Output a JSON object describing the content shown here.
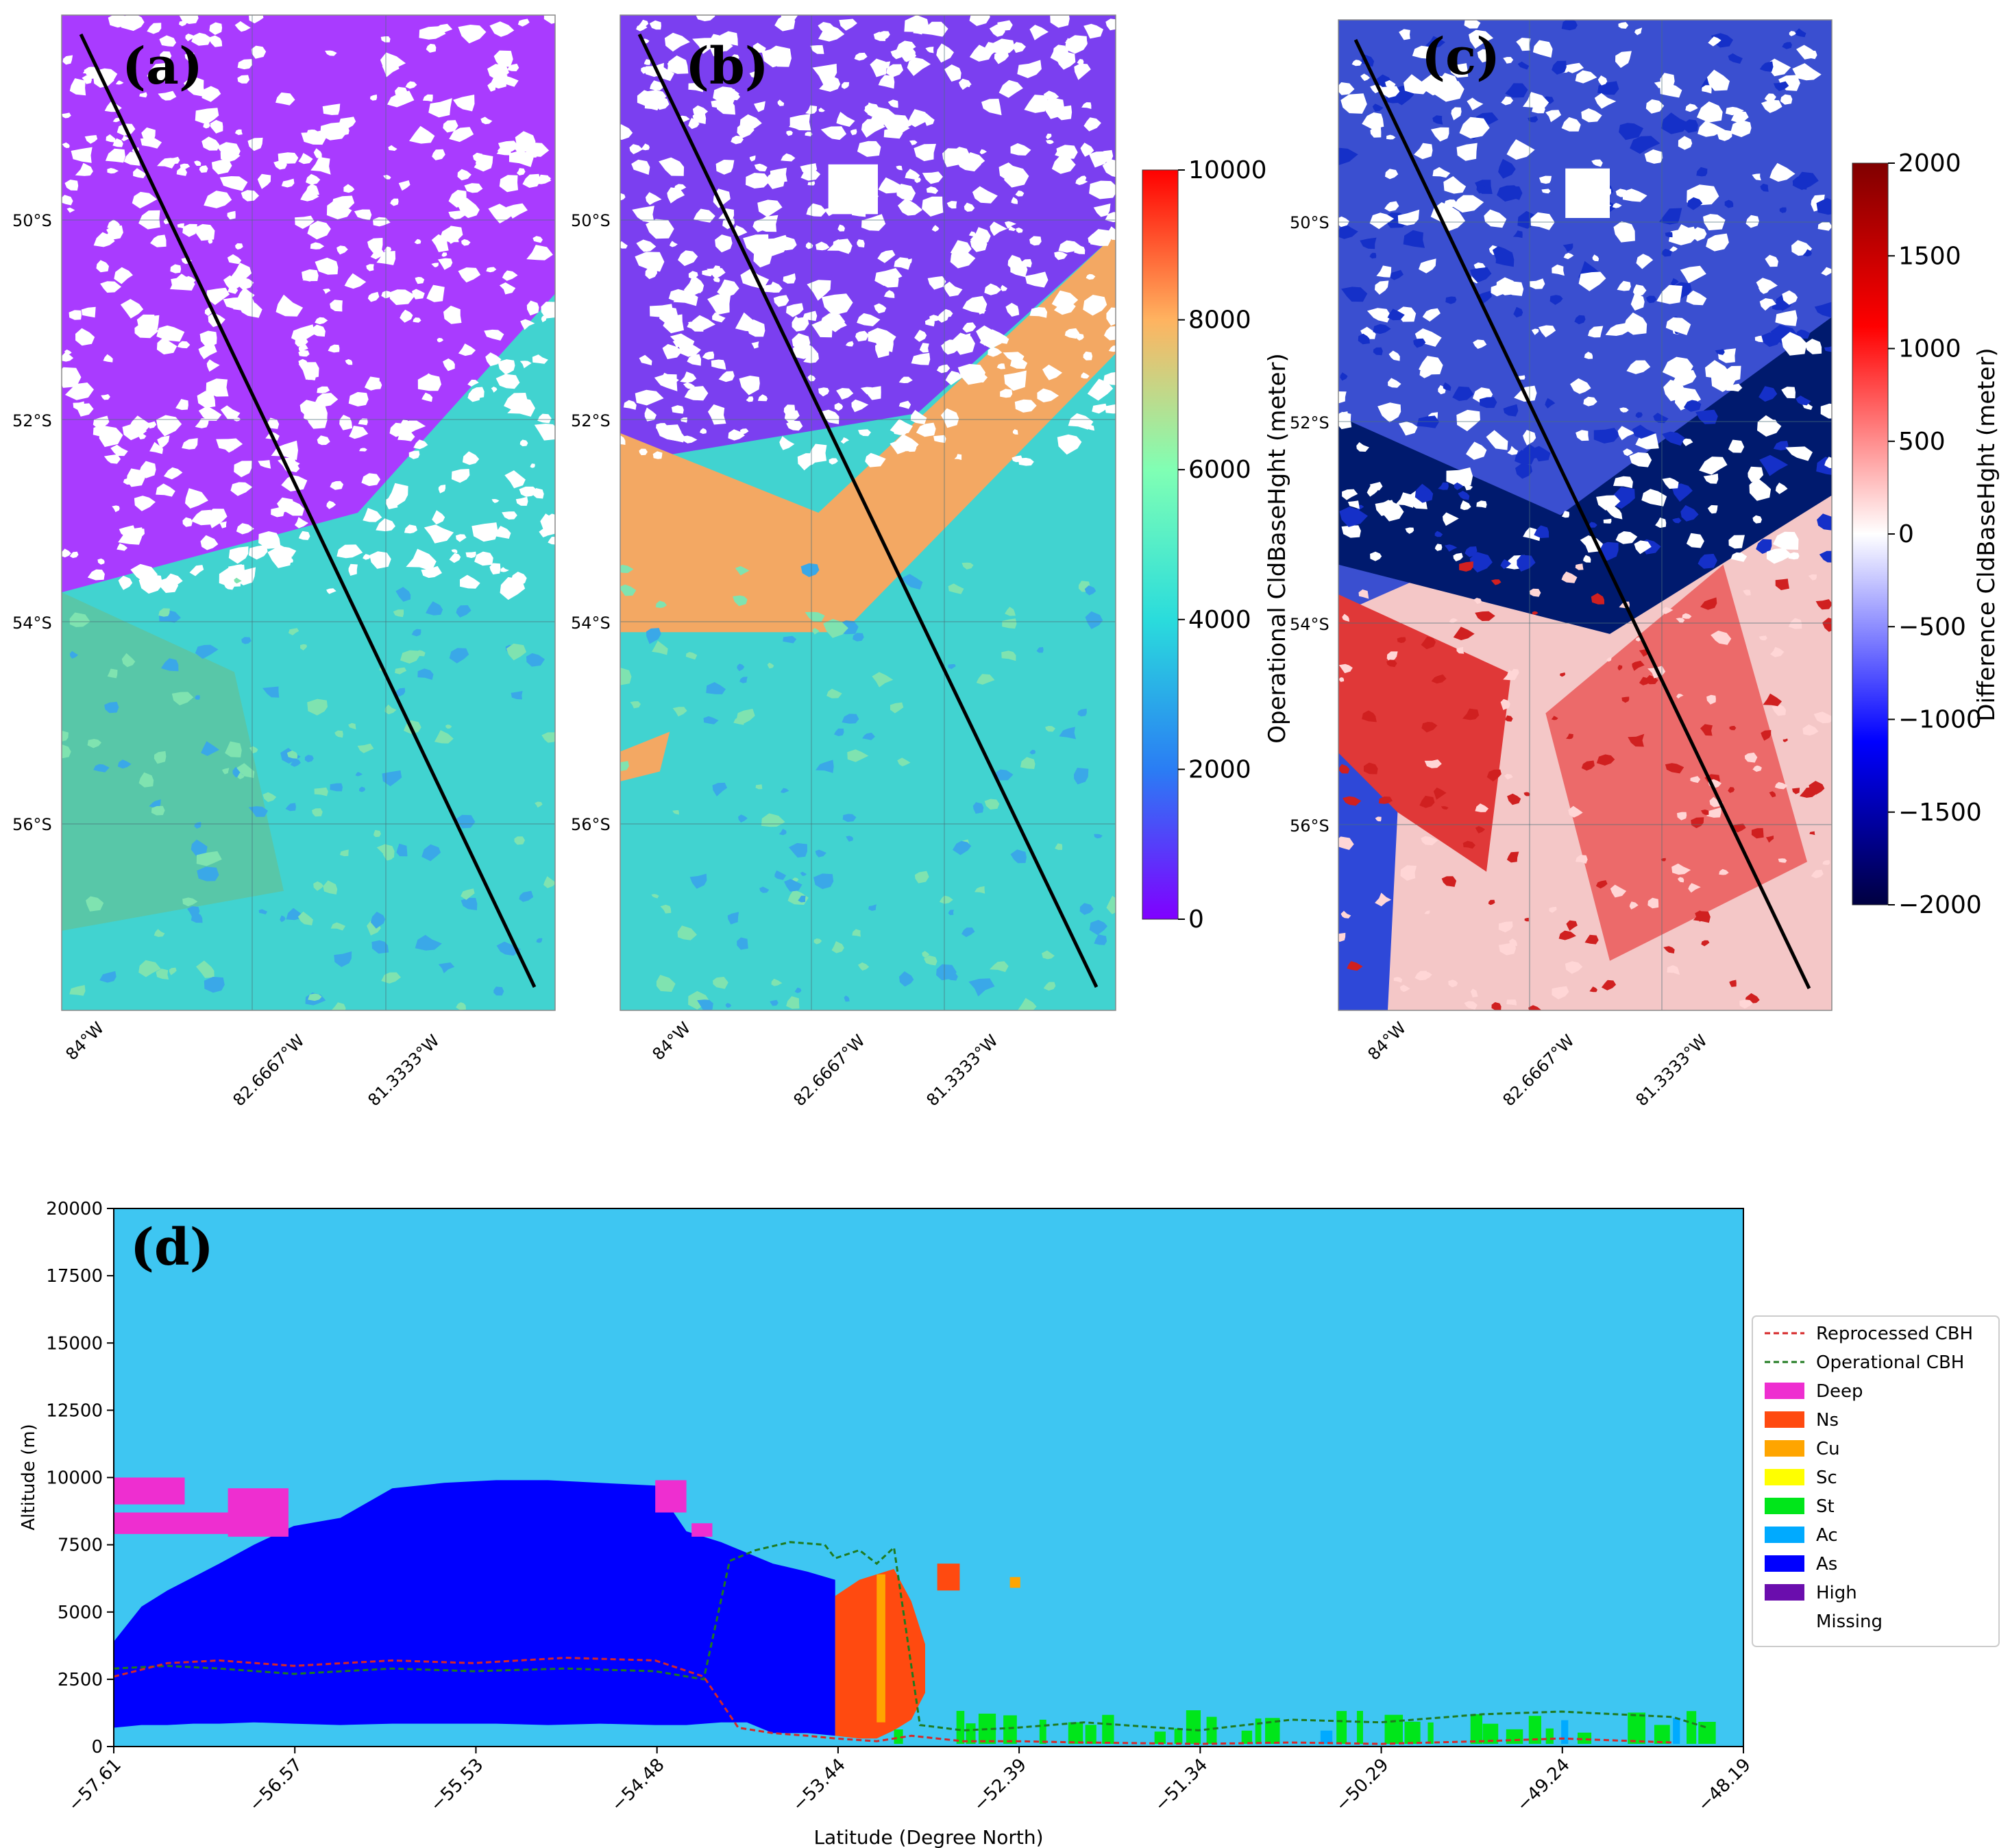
{
  "colors": {
    "purple": "#9b2bff",
    "cyan": "#39d2c4",
    "orange": "#f5a058",
    "sky": "#3ec6f2",
    "navy": "#001a6e",
    "blue": "#1f3bd1",
    "red": "#e0383e",
    "pink": "#f7b3b3",
    "white": "#ffffff"
  },
  "chart_data": [
    {
      "type": "map",
      "label": "(a)",
      "description_kind": "operational",
      "lat_ticks": [
        "50°S",
        "52°S",
        "54°S",
        "56°S"
      ],
      "lon_ticks": [
        "84°W",
        "82.6667°W",
        "81.3333°W"
      ]
    },
    {
      "type": "map",
      "label": "(b)",
      "description_kind": "reprocessed",
      "lat_ticks": [
        "50°S",
        "52°S",
        "54°S",
        "56°S"
      ],
      "lon_ticks": [
        "84°W",
        "82.6667°W",
        "81.3333°W"
      ],
      "colorbar": {
        "label": "Operational CldBaseHght (meter)",
        "range": [
          0,
          10000
        ],
        "ticks": [
          "0",
          "2000",
          "4000",
          "6000",
          "8000",
          "10000"
        ],
        "colormap": "rainbow"
      }
    },
    {
      "type": "map",
      "label": "(c)",
      "description_kind": "difference",
      "lat_ticks": [
        "50°S",
        "52°S",
        "54°S",
        "56°S"
      ],
      "lon_ticks": [
        "84°W",
        "82.6667°W",
        "81.3333°W"
      ],
      "colorbar": {
        "label": "Difference CldBaseHght (meter)",
        "range": [
          -2000,
          2000
        ],
        "ticks": [
          "2000",
          "1500",
          "1000",
          "500",
          "0",
          "−500",
          "−1000",
          "−1500",
          "−2000"
        ],
        "colormap": "seismic"
      }
    },
    {
      "type": "area",
      "label": "(d)",
      "xlabel": "Latitude (Degree North)",
      "ylabel": "Altitude (m)",
      "xlim": [
        -57.61,
        -48.19
      ],
      "ylim": [
        0,
        20000
      ],
      "xticks": [
        "−57.61",
        "−56.57",
        "−55.53",
        "−54.48",
        "−53.44",
        "−52.39",
        "−51.34",
        "−50.29",
        "−49.24",
        "−48.19"
      ],
      "yticks": [
        "0",
        "2500",
        "5000",
        "7500",
        "10000",
        "12500",
        "15000",
        "17500",
        "20000"
      ],
      "legend": [
        {
          "name": "Reprocessed CBH",
          "kind": "dashed",
          "color": "#d62728"
        },
        {
          "name": "Operational CBH",
          "kind": "dashed",
          "color": "#1f7a1f"
        },
        {
          "name": "Deep",
          "kind": "patch",
          "color": "#ee2ed0"
        },
        {
          "name": "Ns",
          "kind": "patch",
          "color": "#ff4a10"
        },
        {
          "name": "Cu",
          "kind": "patch",
          "color": "#ffa500"
        },
        {
          "name": "Sc",
          "kind": "patch",
          "color": "#ffff00"
        },
        {
          "name": "St",
          "kind": "patch",
          "color": "#00e61a"
        },
        {
          "name": "Ac",
          "kind": "patch",
          "color": "#00aaff"
        },
        {
          "name": "As",
          "kind": "patch",
          "color": "#0000ff"
        },
        {
          "name": "High",
          "kind": "patch",
          "color": "#6a0dad"
        },
        {
          "name": "Missing",
          "kind": "patch",
          "color": "#ffffff"
        }
      ],
      "background_class_color": "#3ec6f2",
      "as_region": {
        "x": [
          -57.61,
          -57.45,
          -57.3,
          -57.15,
          -57.0,
          -56.8,
          -56.57,
          -56.3,
          -56.0,
          -55.7,
          -55.4,
          -55.1,
          -54.8,
          -54.48,
          -54.3,
          -54.1,
          -53.95,
          -53.8,
          -53.6,
          -53.44
        ],
        "top": [
          3900,
          5200,
          5800,
          6300,
          6800,
          7500,
          8200,
          8500,
          9600,
          9800,
          9900,
          9900,
          9800,
          9700,
          8000,
          7600,
          7200,
          6800,
          6500,
          6200
        ],
        "bottom": [
          700,
          800,
          800,
          850,
          850,
          900,
          850,
          800,
          850,
          850,
          850,
          800,
          850,
          800,
          800,
          900,
          900,
          500,
          500,
          400
        ]
      },
      "deep_patches": [
        {
          "x": [
            -57.61,
            -57.2
          ],
          "y": [
            9000,
            10000
          ]
        },
        {
          "x": [
            -57.61,
            -56.9
          ],
          "y": [
            7900,
            8700
          ]
        },
        {
          "x": [
            -56.95,
            -56.6
          ],
          "y": [
            7800,
            9600
          ]
        },
        {
          "x": [
            -54.48,
            -54.3
          ],
          "y": [
            8700,
            9900
          ]
        },
        {
          "x": [
            -54.27,
            -54.15
          ],
          "y": [
            7800,
            8300
          ]
        }
      ],
      "ns_region": {
        "x": [
          -53.44,
          -53.3,
          -53.2,
          -53.1,
          -53.0,
          -52.92
        ],
        "top": [
          5600,
          6200,
          6400,
          6600,
          5400,
          3800
        ],
        "bottom": [
          400,
          300,
          300,
          600,
          1000,
          2000
        ]
      },
      "cu_strip": {
        "x": [
          -53.2,
          -53.15
        ],
        "y": [
          900,
          6400
        ]
      },
      "ns_blob": {
        "x": [
          -52.85,
          -52.72
        ],
        "y": [
          5800,
          6800
        ]
      },
      "cu_blob": {
        "x": [
          -52.43,
          -52.37
        ],
        "y": [
          5900,
          6300
        ]
      },
      "st_band": {
        "x": [
          -53.1,
          -48.4
        ],
        "base": 100
      },
      "reprocessed_cbh": {
        "x": [
          -57.61,
          -57.3,
          -57.0,
          -56.57,
          -56.0,
          -55.53,
          -55.0,
          -54.48,
          -54.2,
          -54.0,
          -53.8,
          -53.6,
          -53.44,
          -53.2,
          -53.0,
          -52.7,
          -52.39,
          -52.0,
          -51.34,
          -50.8,
          -50.29,
          -49.7,
          -49.24,
          -48.6
        ],
        "y": [
          2600,
          3100,
          3200,
          3000,
          3200,
          3100,
          3300,
          3200,
          2600,
          700,
          500,
          400,
          300,
          200,
          400,
          200,
          200,
          150,
          100,
          150,
          100,
          200,
          300,
          150
        ]
      },
      "operational_cbh": {
        "x": [
          -57.61,
          -57.3,
          -57.0,
          -56.57,
          -56.0,
          -55.53,
          -55.0,
          -54.48,
          -54.2,
          -54.05,
          -53.9,
          -53.7,
          -53.5,
          -53.44,
          -53.3,
          -53.2,
          -53.1,
          -52.95,
          -52.7,
          -52.39,
          -52.0,
          -51.34,
          -50.8,
          -50.29,
          -49.7,
          -49.24,
          -48.6,
          -48.4
        ],
        "y": [
          2900,
          3000,
          2900,
          2700,
          2900,
          2800,
          2900,
          2800,
          2500,
          6900,
          7300,
          7600,
          7500,
          7000,
          7300,
          6800,
          7400,
          800,
          600,
          700,
          900,
          600,
          1000,
          900,
          1200,
          1300,
          1100,
          700
        ]
      }
    }
  ]
}
